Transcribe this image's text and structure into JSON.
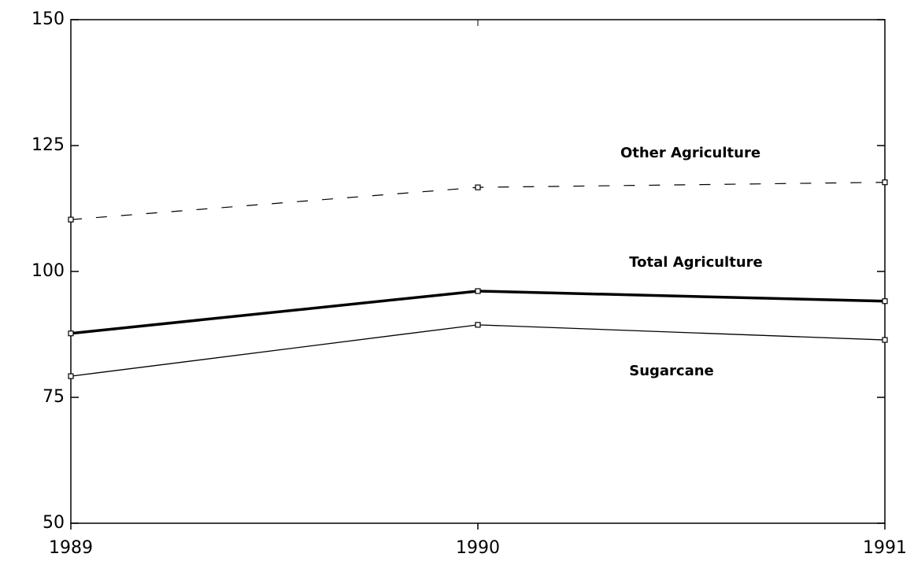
{
  "chart_data": {
    "type": "line",
    "x": [
      1989,
      1990,
      1991
    ],
    "xlim": [
      1989,
      1991
    ],
    "xticks": [
      1989,
      1990,
      1991
    ],
    "ylim": [
      50,
      150
    ],
    "yticks": [
      50,
      75,
      100,
      125,
      150
    ],
    "grid": false,
    "series": [
      {
        "name": "Other Agriculture",
        "color": "#000000",
        "line_style": "dashed",
        "values": [
          110.3,
          116.7,
          117.7
        ]
      },
      {
        "name": "Total Agriculture",
        "color": "#000000",
        "line_style": "thick",
        "values": [
          87.7,
          96.1,
          94.1
        ]
      },
      {
        "name": "Sugarcane",
        "color": "#000000",
        "line_style": "thin",
        "values": [
          79.2,
          89.4,
          86.4
        ]
      }
    ]
  }
}
